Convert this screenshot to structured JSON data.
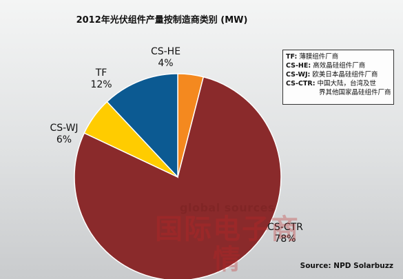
{
  "chart_data": {
    "type": "pie",
    "title": "2012年光伏组件产量按制造商类别 (MW)",
    "slices": [
      {
        "label": "CS-CTR",
        "value": 78,
        "display": "78%",
        "color": "#8a2a2b"
      },
      {
        "label": "CS-WJ",
        "value": 6,
        "display": "6%",
        "color": "#ffcc00"
      },
      {
        "label": "TF",
        "value": 12,
        "display": "12%",
        "color": "#0c5a92"
      },
      {
        "label": "CS-HE",
        "value": 4,
        "display": "4%",
        "color": "#f4891f"
      }
    ],
    "legend": {
      "placement": "top-right",
      "entries": [
        {
          "key": "TF:",
          "text": "薄膜组件厂商"
        },
        {
          "key": "CS-HE:",
          "text": "高效晶硅组件厂商"
        },
        {
          "key": "CS-WJ:",
          "text": "欧美日本晶硅组件厂商"
        },
        {
          "key": "CS-CTR:",
          "text": "中国大陆，台湾及世"
        }
      ],
      "continuation": "界其他国家晶硅组件厂商"
    },
    "source": "Source: NPD Solarbuzz"
  },
  "watermark": {
    "brand": "global sources",
    "text": "国际电子商情"
  }
}
